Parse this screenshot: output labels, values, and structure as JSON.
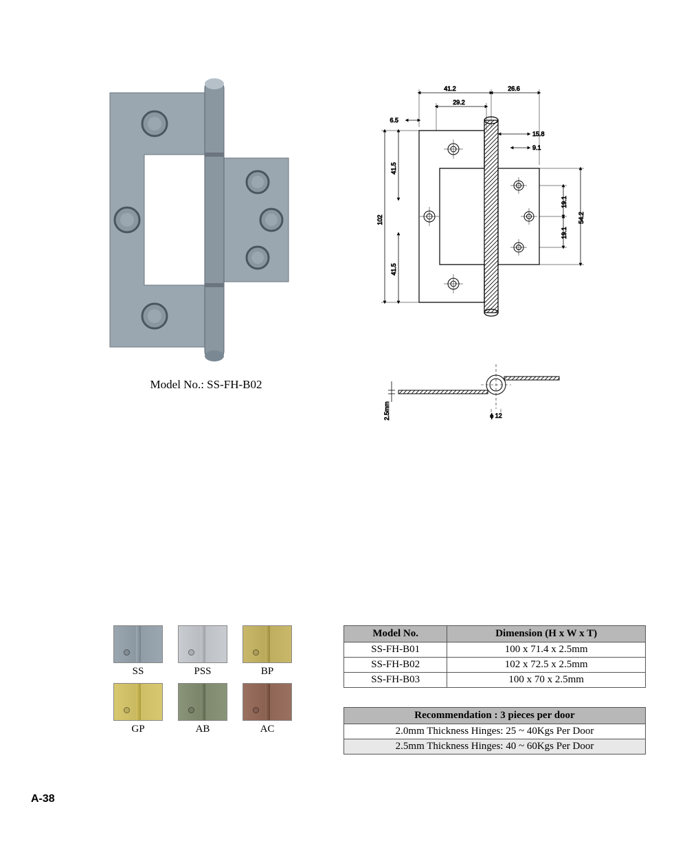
{
  "product": {
    "model_label": "Model No.: SS-FH-B02",
    "hinge_color_main": "#9aa6b0",
    "hinge_color_dark": "#7a8893",
    "hinge_color_light": "#b5c0c8",
    "hole_outer": "#4a5560",
    "hole_inner": "#8a96a0"
  },
  "drawing": {
    "dims_top": [
      "41.2",
      "26.6",
      "29.2",
      "6.5",
      "15.8",
      "9.1"
    ],
    "dims_side": [
      "102",
      "41.5",
      "41.5",
      "19.1",
      "19.1",
      "54.2"
    ],
    "side_detail": {
      "thickness": "2.5mm",
      "diameter": "ϕ 12"
    },
    "line_color": "#000000",
    "hatch_color": "#000000"
  },
  "finishes": [
    {
      "code": "SS",
      "c1": "#9aa6b0",
      "c2": "#8a96a0",
      "c3": "#9aa6b0"
    },
    {
      "code": "PSS",
      "c1": "#c8ccd0",
      "c2": "#b0b4b8",
      "c3": "#c8ccd0"
    },
    {
      "code": "BP",
      "c1": "#c9b86a",
      "c2": "#b0a050",
      "c3": "#c9b86a"
    },
    {
      "code": "GP",
      "c1": "#d8c870",
      "c2": "#c0b050",
      "c3": "#d8c870"
    },
    {
      "code": "AB",
      "c1": "#8a9478",
      "c2": "#707a60",
      "c3": "#8a9478"
    },
    {
      "code": "AC",
      "c1": "#9a7060",
      "c2": "#805848",
      "c3": "#9a7060"
    }
  ],
  "spec_table": {
    "headers": [
      "Model No.",
      "Dimension (H x W x T)"
    ],
    "rows": [
      [
        "SS-FH-B01",
        "100 x 71.4 x 2.5mm"
      ],
      [
        "SS-FH-B02",
        "102 x 72.5 x 2.5mm"
      ],
      [
        "SS-FH-B03",
        "100 x 70 x 2.5mm"
      ]
    ]
  },
  "rec_table": {
    "header": "Recommendation : 3 pieces per door",
    "rows": [
      "2.0mm Thickness Hinges: 25 ~ 40Kgs Per Door",
      "2.5mm Thickness Hinges: 40 ~ 60Kgs Per Door"
    ]
  },
  "page_number": "A-38"
}
